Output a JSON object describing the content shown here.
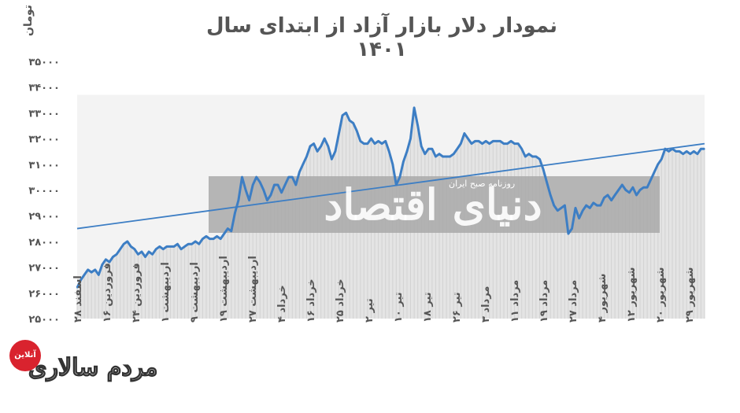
{
  "chart_data": {
    "type": "area",
    "title": "نمودار دلار بازار آزاد از ابتدای سال ۱۴۰۱",
    "ylabel": "تومان",
    "ylim": [
      25000,
      35000
    ],
    "ytick_values": [
      25000,
      26000,
      27000,
      28000,
      29000,
      30000,
      31000,
      32000,
      33000,
      34000,
      35000
    ],
    "ytick_labels": [
      "۲۵۰۰۰",
      "۲۶۰۰۰",
      "۲۷۰۰۰",
      "۲۸۰۰۰",
      "۲۹۰۰۰",
      "۳۰۰۰۰",
      "۳۱۰۰۰",
      "۳۲۰۰۰",
      "۳۳۰۰۰",
      "۳۴۰۰۰",
      "۳۵۰۰۰"
    ],
    "x_tick_labels": [
      "اسفند ۲۸",
      "فروردین ۱۶",
      "فروردین ۲۴",
      "اردیبهشت ۱",
      "اردیبهشت ۹",
      "اردیبهشت ۱۹",
      "اردیبهشت ۲۷",
      "خرداد ۴",
      "خرداد ۱۶",
      "خرداد ۲۵",
      "تیر ۲",
      "تیر ۱۰",
      "تیر ۱۸",
      "تیر ۲۶",
      "مرداد ۳",
      "مرداد ۱۱",
      "مرداد ۱۹",
      "مرداد ۲۷",
      "شهریور ۴",
      "شهریور ۱۲",
      "شهریور ۲۰",
      "شهریور ۲۹"
    ],
    "series": [
      {
        "values": [
          26200,
          26500,
          26700,
          26900,
          26800,
          26900,
          26700,
          27100,
          27300,
          27200,
          27400,
          27500,
          27700,
          27900,
          28000,
          27800,
          27700,
          27500,
          27600,
          27400,
          27600,
          27500,
          27700,
          27800,
          27700,
          27800,
          27800,
          27800,
          27900,
          27700,
          27800,
          27900,
          27900,
          28000,
          27900,
          28100,
          28200,
          28100,
          28100,
          28200,
          28100,
          28300,
          28500,
          28400,
          29100,
          29600,
          30500,
          30000,
          29600,
          30200,
          30500,
          30300,
          30000,
          29600,
          29800,
          30200,
          30200,
          29900,
          30200,
          30500,
          30500,
          30200,
          30700,
          31000,
          31300,
          31700,
          31800,
          31500,
          31700,
          32000,
          31700,
          31200,
          31500,
          32200,
          32900,
          33000,
          32700,
          32600,
          32300,
          31900,
          31800,
          31800,
          32000,
          31800,
          31900,
          31800,
          31900,
          31500,
          31000,
          30200,
          30500,
          31100,
          31500,
          32000,
          33200,
          32500,
          31700,
          31400,
          31600,
          31600,
          31300,
          31400,
          31300,
          31300,
          31300,
          31400,
          31600,
          31800,
          32200,
          32000,
          31800,
          31900,
          31900,
          31800,
          31900,
          31800,
          31900,
          31900,
          31900,
          31800,
          31800,
          31900,
          31800,
          31800,
          31600,
          31300,
          31400,
          31300,
          31300,
          31200,
          30800,
          30300,
          29800,
          29400,
          29200,
          29300,
          29400,
          28300,
          28500,
          29300,
          28900,
          29200,
          29400,
          29300,
          29500,
          29400,
          29400,
          29700,
          29800,
          29600,
          29800,
          30000,
          30200,
          30000,
          29900,
          30100,
          29800,
          30000,
          30100,
          30100,
          30400,
          30700,
          31000,
          31200,
          31600,
          31500,
          31600,
          31500,
          31500,
          31400,
          31500,
          31400,
          31500,
          31400,
          31600,
          31600
        ]
      }
    ],
    "trendline": {
      "start": 28500,
      "end": 31800
    }
  },
  "watermark": {
    "main": "دنیای اقتصاد",
    "sub": "روزنامه صبح ایران"
  },
  "logo": {
    "badge": "آنلاین",
    "name": "مردم سالاری"
  },
  "colors": {
    "line": "#3d7ec4",
    "trend": "#3d7ec4",
    "area": "#e4e4e4",
    "watermark_box": "#a9a9a9"
  }
}
